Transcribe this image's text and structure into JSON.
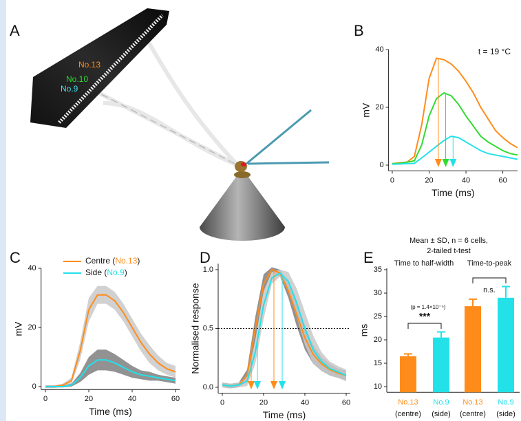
{
  "panel_a": {
    "letter": "A",
    "labels": [
      {
        "text": "No.13",
        "color": "#ff8c1a"
      },
      {
        "text": "No.10",
        "color": "#2fdc2f"
      },
      {
        "text": "No.9",
        "color": "#3fe3ea"
      }
    ]
  },
  "chart_data": [
    {
      "type": "line",
      "panel": "B",
      "annotation": "t = 19 °C",
      "xlabel": "Time (ms)",
      "ylabel": "mV",
      "x": [
        0,
        4,
        8,
        12,
        16,
        20,
        24,
        28,
        32,
        36,
        40,
        44,
        48,
        52,
        56,
        60,
        64,
        68
      ],
      "xlim": [
        -2,
        68
      ],
      "ylim": [
        -2,
        40
      ],
      "xticks": [
        0,
        20,
        40,
        60
      ],
      "yticks": [
        0,
        20,
        40
      ],
      "series": [
        {
          "color": "#ff8c1a",
          "values": [
            0.5,
            0.8,
            1,
            3,
            14,
            30,
            37,
            36.5,
            35,
            32.5,
            29,
            25,
            20,
            16,
            12,
            9.5,
            7.5,
            6
          ],
          "markers": [
            25
          ]
        },
        {
          "color": "#2fdc2f",
          "values": [
            0.5,
            0.6,
            1,
            1.5,
            7,
            17,
            23,
            25,
            24,
            21,
            17,
            13.5,
            10,
            8,
            6.5,
            5,
            4,
            3.5
          ],
          "markers": [
            29
          ]
        },
        {
          "color": "#22e1e8",
          "values": [
            0.3,
            0.4,
            0.5,
            0.6,
            2.5,
            4.5,
            6.5,
            8.5,
            10,
            9.5,
            8,
            6.5,
            5,
            4,
            3.5,
            3,
            2.5,
            2
          ],
          "markers": [
            33
          ]
        }
      ]
    },
    {
      "type": "line",
      "panel": "C",
      "xlabel": "Time (ms)",
      "ylabel": "mV",
      "legend": true,
      "x": [
        0,
        4,
        8,
        12,
        16,
        20,
        24,
        28,
        32,
        36,
        40,
        44,
        48,
        52,
        56,
        60
      ],
      "xlim": [
        -2,
        62
      ],
      "ylim": [
        -1,
        40
      ],
      "xticks": [
        0,
        20,
        40,
        60
      ],
      "yticks": [
        0,
        20,
        40
      ],
      "series": [
        {
          "legend": [
            "Centre (",
            "No.13",
            ")"
          ],
          "color": "#ff8c1a",
          "band_color": "#c9c9c9",
          "values": [
            0,
            0,
            0.5,
            2,
            12,
            26,
            31,
            31,
            29,
            25,
            20,
            15,
            11,
            8,
            6,
            5
          ],
          "sd": [
            0.5,
            0.5,
            0.5,
            1,
            3,
            4,
            3,
            3,
            3,
            3,
            3,
            3,
            3,
            2.5,
            2,
            2
          ]
        },
        {
          "legend": [
            "Side (",
            "No.9",
            ")"
          ],
          "color": "#22e1e8",
          "band_color": "#7f7f7f",
          "values": [
            0,
            0,
            0,
            0.5,
            3,
            7,
            9,
            9,
            8,
            6.5,
            5,
            4,
            3.5,
            3,
            2.5,
            2
          ],
          "sd": [
            0.3,
            0.3,
            0.3,
            0.5,
            1.5,
            3,
            3.5,
            3.5,
            3,
            2.5,
            2,
            1.5,
            1.5,
            1,
            1,
            1
          ]
        }
      ]
    },
    {
      "type": "line",
      "panel": "D",
      "xlabel": "Time (ms)",
      "ylabel": "Normalised response",
      "hline": 0.5,
      "x": [
        0,
        4,
        8,
        12,
        16,
        20,
        24,
        28,
        32,
        36,
        40,
        44,
        48,
        52,
        56,
        60
      ],
      "xlim": [
        -2,
        62
      ],
      "ylim": [
        -0.05,
        1.05
      ],
      "xticks": [
        0,
        20,
        40,
        60
      ],
      "yticks": [
        {
          "value": 0,
          "label": "0.0"
        },
        {
          "value": 0.5,
          "label": "0.5"
        },
        {
          "value": 1,
          "label": "1.0"
        }
      ],
      "series": [
        {
          "color": "#ff8c1a",
          "band_color": "#7f7f7f",
          "markers": [
            14,
            25
          ],
          "values": [
            0.02,
            0.01,
            0.02,
            0.1,
            0.5,
            0.88,
            1.0,
            0.97,
            0.82,
            0.62,
            0.42,
            0.28,
            0.2,
            0.15,
            0.12,
            0.1
          ],
          "sd": [
            0.02,
            0.02,
            0.02,
            0.05,
            0.1,
            0.08,
            0.02,
            0.03,
            0.06,
            0.1,
            0.1,
            0.08,
            0.06,
            0.05,
            0.04,
            0.04
          ]
        },
        {
          "color": "#22e1e8",
          "band_color": "#c9c9c9",
          "markers": [
            17,
            29
          ],
          "values": [
            0.02,
            0.01,
            0.02,
            0.05,
            0.3,
            0.7,
            0.93,
            0.97,
            0.9,
            0.72,
            0.5,
            0.32,
            0.22,
            0.16,
            0.13,
            0.1
          ],
          "sd": [
            0.02,
            0.02,
            0.02,
            0.04,
            0.1,
            0.12,
            0.05,
            0.03,
            0.08,
            0.12,
            0.14,
            0.12,
            0.08,
            0.06,
            0.05,
            0.05
          ]
        }
      ]
    },
    {
      "type": "bar",
      "panel": "E",
      "title": [
        "Mean ± SD, n = 6 cells,",
        "2-tailed t-test"
      ],
      "groups": [
        "Time to half-width",
        "Time-to-peak"
      ],
      "ylabel": "ms",
      "categories": [
        "No.13",
        "No.9",
        "No.13",
        "No.9"
      ],
      "category_notes": [
        "(centre)",
        "(side)",
        "(centre)",
        "(side)"
      ],
      "colors": [
        "#ff8c1a",
        "#22e1e8",
        "#ff8c1a",
        "#22e1e8"
      ],
      "values": [
        16.5,
        20.5,
        27.2,
        29
      ],
      "errors": [
        0.5,
        1.2,
        1.5,
        2.4
      ],
      "ylim": [
        8.8,
        35.3
      ],
      "yticks": [
        10,
        15,
        20,
        25,
        30,
        35
      ],
      "annotations": [
        "(p = 1.4×10⁻⁵)",
        "***",
        "n.s."
      ]
    }
  ]
}
